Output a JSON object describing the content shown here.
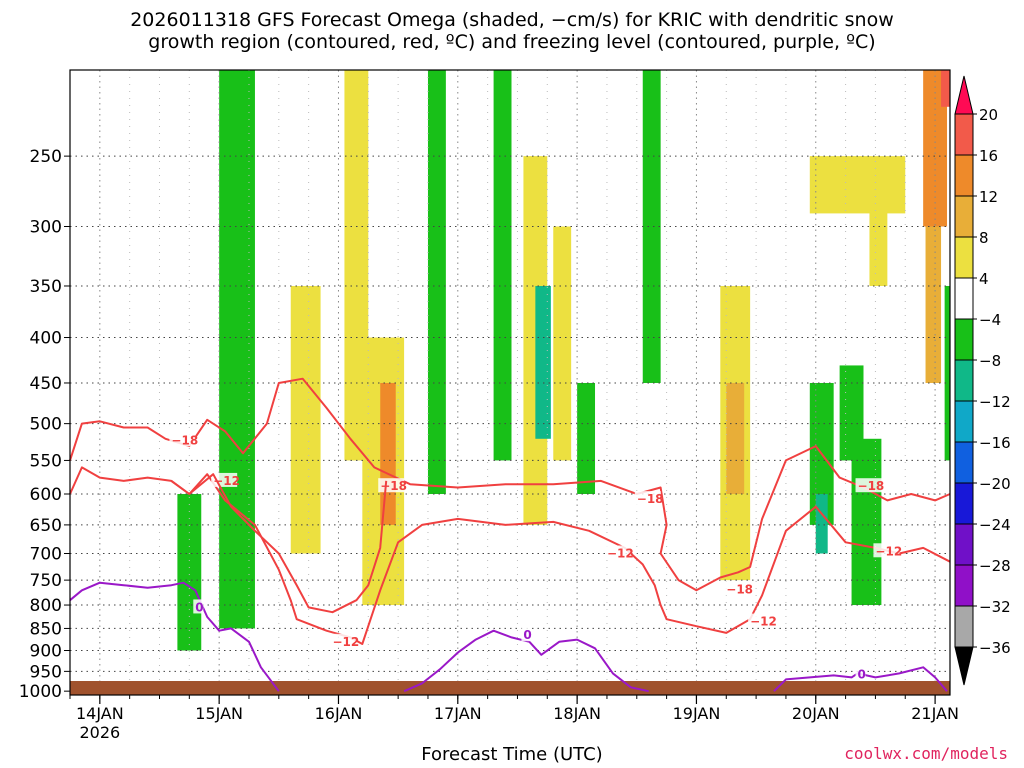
{
  "title_line1": "2026011318 GFS Forecast Omega (shaded, −cm/s) for KRIC with dendritic snow",
  "title_line2": "growth region (contoured, red, ºC) and freezing level (contoured, purple, ºC)",
  "xlabel": "Forecast Time (UTC)",
  "credit": "coolwx.com/models",
  "chart_data": {
    "type": "heatmap",
    "y_scale": "pressure (log-like, reversed)",
    "y_ticks": [
      250,
      300,
      350,
      400,
      450,
      500,
      550,
      600,
      650,
      700,
      750,
      800,
      850,
      900,
      950,
      1000
    ],
    "y_range": [
      200,
      1010
    ],
    "x_ticks": [
      {
        "day": 14,
        "label": "14JAN",
        "sublabel": "2026"
      },
      {
        "day": 15,
        "label": "15JAN",
        "sublabel": ""
      },
      {
        "day": 16,
        "label": "16JAN",
        "sublabel": ""
      },
      {
        "day": 17,
        "label": "17JAN",
        "sublabel": ""
      },
      {
        "day": 18,
        "label": "18JAN",
        "sublabel": ""
      },
      {
        "day": 19,
        "label": "19JAN",
        "sublabel": ""
      },
      {
        "day": 20,
        "label": "20JAN",
        "sublabel": ""
      },
      {
        "day": 21,
        "label": "21JAN",
        "sublabel": ""
      }
    ],
    "x_range": [
      13.75,
      21.125
    ],
    "grid": true,
    "colorbar": {
      "labels": [
        "20",
        "16",
        "12",
        "8",
        "4",
        "−4",
        "−8",
        "−12",
        "−16",
        "−20",
        "−24",
        "−28",
        "−32",
        "−36"
      ],
      "colors": [
        "#ff0a54",
        "#f25a4a",
        "#ee8a2a",
        "#e8ae38",
        "#ece040",
        "#ffffff",
        "#18c018",
        "#10b888",
        "#10a8c8",
        "#1060e0",
        "#1818d8",
        "#7010c8",
        "#9010c8",
        "#a8a8a8",
        "#000000"
      ]
    },
    "shaded_regions": [
      {
        "x0": 15.0,
        "x1": 15.3,
        "p0": 200,
        "p1": 850,
        "color": "#18c018"
      },
      {
        "x0": 14.65,
        "x1": 14.85,
        "p0": 600,
        "p1": 900,
        "color": "#18c018"
      },
      {
        "x0": 15.6,
        "x1": 15.85,
        "p0": 350,
        "p1": 700,
        "color": "#ece040"
      },
      {
        "x0": 16.05,
        "x1": 16.25,
        "p0": 200,
        "p1": 550,
        "color": "#ece040"
      },
      {
        "x0": 16.2,
        "x1": 16.55,
        "p0": 400,
        "p1": 800,
        "color": "#ece040"
      },
      {
        "x0": 16.35,
        "x1": 16.48,
        "p0": 450,
        "p1": 650,
        "color": "#ee8a2a"
      },
      {
        "x0": 16.75,
        "x1": 16.9,
        "p0": 200,
        "p1": 600,
        "color": "#18c018"
      },
      {
        "x0": 17.3,
        "x1": 17.45,
        "p0": 200,
        "p1": 550,
        "color": "#18c018"
      },
      {
        "x0": 17.55,
        "x1": 17.75,
        "p0": 250,
        "p1": 650,
        "color": "#ece040"
      },
      {
        "x0": 17.8,
        "x1": 17.95,
        "p0": 300,
        "p1": 550,
        "color": "#ece040"
      },
      {
        "x0": 17.65,
        "x1": 17.78,
        "p0": 350,
        "p1": 520,
        "color": "#10b888"
      },
      {
        "x0": 18.0,
        "x1": 18.15,
        "p0": 450,
        "p1": 600,
        "color": "#18c018"
      },
      {
        "x0": 18.55,
        "x1": 18.7,
        "p0": 200,
        "p1": 450,
        "color": "#18c018"
      },
      {
        "x0": 19.2,
        "x1": 19.45,
        "p0": 350,
        "p1": 750,
        "color": "#ece040"
      },
      {
        "x0": 19.25,
        "x1": 19.4,
        "p0": 450,
        "p1": 600,
        "color": "#e8ae38"
      },
      {
        "x0": 19.95,
        "x1": 20.15,
        "p0": 450,
        "p1": 650,
        "color": "#18c018"
      },
      {
        "x0": 20.0,
        "x1": 20.1,
        "p0": 600,
        "p1": 700,
        "color": "#10b888"
      },
      {
        "x0": 20.2,
        "x1": 20.4,
        "p0": 430,
        "p1": 550,
        "color": "#18c018"
      },
      {
        "x0": 20.3,
        "x1": 20.55,
        "p0": 520,
        "p1": 800,
        "color": "#18c018"
      },
      {
        "x0": 19.95,
        "x1": 20.75,
        "p0": 250,
        "p1": 290,
        "color": "#ece040"
      },
      {
        "x0": 20.45,
        "x1": 20.6,
        "p0": 280,
        "p1": 350,
        "color": "#ece040"
      },
      {
        "x0": 20.9,
        "x1": 21.1,
        "p0": 200,
        "p1": 300,
        "color": "#ee8a2a"
      },
      {
        "x0": 20.92,
        "x1": 21.05,
        "p0": 300,
        "p1": 450,
        "color": "#e8ae38"
      },
      {
        "x0": 21.08,
        "x1": 21.125,
        "p0": 350,
        "p1": 550,
        "color": "#18c018"
      },
      {
        "x0": 21.05,
        "x1": 21.125,
        "p0": 200,
        "p1": 220,
        "color": "#f25a4a"
      }
    ],
    "contours": [
      {
        "label": "−18",
        "color": "#f04040",
        "x": [
          13.75,
          13.85,
          14.0,
          14.2,
          14.4,
          14.55,
          14.75,
          14.9,
          15.05,
          15.2,
          15.4,
          15.5,
          15.7,
          15.9,
          16.1,
          16.3,
          16.6,
          17.0,
          17.4,
          17.8,
          18.2,
          18.5,
          18.7,
          18.75,
          18.7,
          18.85,
          19.0,
          19.2,
          19.35,
          19.45,
          19.55,
          19.75,
          20.0,
          20.2,
          20.4,
          20.6,
          20.8,
          21.0,
          21.125
        ],
        "y": [
          550,
          500,
          497,
          505,
          505,
          520,
          530,
          495,
          510,
          540,
          500,
          450,
          445,
          480,
          520,
          560,
          585,
          590,
          585,
          585,
          580,
          600,
          590,
          650,
          700,
          750,
          770,
          745,
          735,
          725,
          640,
          550,
          530,
          575,
          590,
          610,
          600,
          610,
          600
        ],
        "label_pos": [
          [
            14.6,
            522,
            "−18"
          ],
          [
            16.35,
            588,
            "−18"
          ],
          [
            18.5,
            608,
            "−18"
          ],
          [
            19.25,
            768,
            "−18"
          ],
          [
            20.35,
            588,
            "−18"
          ]
        ]
      },
      {
        "label": "−12",
        "color": "#f04040",
        "x": [
          13.75,
          13.85,
          14.0,
          14.2,
          14.4,
          14.6,
          14.75,
          14.9,
          15.05,
          15.3,
          15.5,
          15.6,
          15.65,
          15.9,
          16.1,
          16.2,
          16.35,
          16.5,
          16.7,
          17.0,
          17.4,
          17.8,
          18.1,
          18.4,
          18.55,
          18.65,
          18.7,
          18.75,
          19.0,
          19.25,
          19.45,
          19.55,
          19.75,
          20.0,
          20.25,
          20.5,
          20.7,
          20.9,
          21.125
        ],
        "y": [
          600,
          560,
          575,
          580,
          575,
          580,
          600,
          570,
          610,
          650,
          730,
          790,
          830,
          855,
          870,
          885,
          770,
          680,
          650,
          640,
          650,
          645,
          660,
          690,
          720,
          760,
          800,
          830,
          845,
          860,
          830,
          780,
          660,
          620,
          680,
          690,
          700,
          690,
          715
        ],
        "label_pos": [
          [
            14.95,
            580,
            "−12"
          ],
          [
            15.95,
            880,
            "−12"
          ],
          [
            18.25,
            700,
            "−12"
          ],
          [
            19.45,
            835,
            "−12"
          ],
          [
            20.5,
            696,
            "−12"
          ]
        ]
      },
      {
        "label": "−12 (upper-level)",
        "color": "#f04040",
        "x": [
          14.6,
          14.75,
          14.95,
          15.1,
          15.3,
          15.5,
          15.65,
          15.75,
          15.95,
          16.15,
          16.25,
          16.35,
          16.4
        ],
        "y": [
          580,
          600,
          570,
          620,
          660,
          700,
          760,
          805,
          815,
          790,
          760,
          690,
          580
        ],
        "label_pos": []
      },
      {
        "label": "0",
        "color": "#9a18c8",
        "x": [
          13.75,
          13.85,
          14.0,
          14.2,
          14.4,
          14.6,
          14.7,
          14.8,
          14.9,
          15.0,
          15.1,
          15.25,
          15.35,
          15.5
        ],
        "y": [
          790,
          770,
          755,
          760,
          765,
          760,
          755,
          770,
          825,
          855,
          850,
          880,
          940,
          1000
        ],
        "label_pos": [
          [
            14.8,
            805,
            "0"
          ]
        ]
      },
      {
        "label": "0 (second)",
        "color": "#9a18c8",
        "x": [
          16.55,
          16.7,
          16.85,
          17.0,
          17.15,
          17.3,
          17.45,
          17.6,
          17.7,
          17.85,
          18.0,
          18.15,
          18.3,
          18.45,
          18.6
        ],
        "y": [
          1000,
          980,
          945,
          905,
          875,
          855,
          870,
          880,
          910,
          880,
          875,
          895,
          955,
          990,
          1000
        ],
        "label_pos": [
          [
            17.55,
            865,
            "0"
          ]
        ]
      },
      {
        "label": "0 (third)",
        "color": "#9a18c8",
        "x": [
          19.65,
          19.75,
          19.95,
          20.15,
          20.3,
          20.35,
          20.5,
          20.7,
          20.9,
          21.0,
          21.1
        ],
        "y": [
          1000,
          970,
          965,
          960,
          965,
          955,
          965,
          955,
          940,
          965,
          1000
        ],
        "label_pos": [
          [
            20.35,
            958,
            "0"
          ]
        ]
      }
    ]
  }
}
